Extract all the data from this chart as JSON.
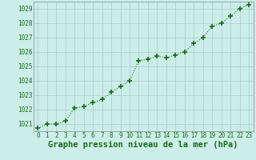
{
  "x": [
    0,
    1,
    2,
    3,
    4,
    5,
    6,
    7,
    8,
    9,
    10,
    11,
    12,
    13,
    14,
    15,
    16,
    17,
    18,
    19,
    20,
    21,
    22,
    23
  ],
  "y": [
    1020.7,
    1021.0,
    1021.0,
    1021.2,
    1022.1,
    1022.2,
    1022.5,
    1022.7,
    1023.2,
    1023.6,
    1024.0,
    1025.4,
    1025.5,
    1025.7,
    1025.6,
    1025.8,
    1026.0,
    1026.6,
    1027.0,
    1027.8,
    1028.0,
    1028.5,
    1029.0,
    1029.3
  ],
  "ylim": [
    1020.5,
    1029.5
  ],
  "yticks": [
    1021,
    1022,
    1023,
    1024,
    1025,
    1026,
    1027,
    1028,
    1029
  ],
  "xticks": [
    0,
    1,
    2,
    3,
    4,
    5,
    6,
    7,
    8,
    9,
    10,
    11,
    12,
    13,
    14,
    15,
    16,
    17,
    18,
    19,
    20,
    21,
    22,
    23
  ],
  "line_color": "#1a6b1a",
  "marker": "+",
  "marker_size": 4,
  "bg_color": "#cceee8",
  "grid_color": "#aacccc",
  "xlabel": "Graphe pression niveau de la mer (hPa)",
  "xlabel_color": "#1a6b1a",
  "tick_color": "#1a6b1a",
  "tick_label_size": 5.5,
  "xlabel_size": 7.5
}
